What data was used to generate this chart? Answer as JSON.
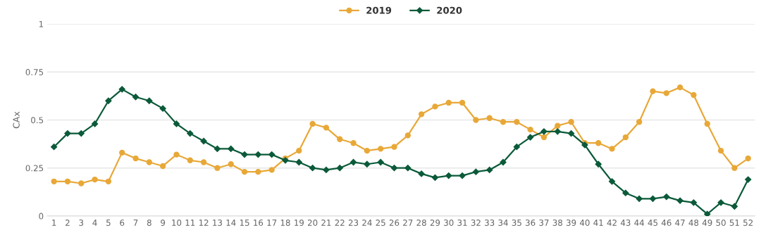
{
  "chart_data": {
    "type": "line",
    "ylabel": "CAx",
    "categories": [
      "1",
      "2",
      "3",
      "4",
      "5",
      "6",
      "7",
      "8",
      "9",
      "10",
      "11",
      "12",
      "13",
      "14",
      "15",
      "16",
      "17",
      "18",
      "19",
      "20",
      "21",
      "22",
      "23",
      "24",
      "25",
      "26",
      "27",
      "28",
      "29",
      "30",
      "31",
      "32",
      "33",
      "34",
      "35",
      "36",
      "37",
      "38",
      "39",
      "40",
      "41",
      "42",
      "43",
      "44",
      "45",
      "46",
      "47",
      "48",
      "49",
      "50",
      "51",
      "52"
    ],
    "series": [
      {
        "name": "2019",
        "color": "#e8a838",
        "marker": "circle",
        "values": [
          0.18,
          0.18,
          0.17,
          0.19,
          0.18,
          0.33,
          0.3,
          0.28,
          0.26,
          0.32,
          0.29,
          0.28,
          0.25,
          0.27,
          0.23,
          0.23,
          0.24,
          0.3,
          0.34,
          0.48,
          0.46,
          0.4,
          0.38,
          0.34,
          0.35,
          0.36,
          0.42,
          0.53,
          0.57,
          0.59,
          0.59,
          0.5,
          0.51,
          0.49,
          0.49,
          0.45,
          0.41,
          0.47,
          0.49,
          0.38,
          0.38,
          0.35,
          0.41,
          0.49,
          0.65,
          0.64,
          0.67,
          0.63,
          0.48,
          0.34,
          0.25,
          0.3
        ]
      },
      {
        "name": "2020",
        "color": "#0b5a3a",
        "marker": "diamond",
        "values": [
          0.36,
          0.43,
          0.43,
          0.48,
          0.6,
          0.66,
          0.62,
          0.6,
          0.56,
          0.48,
          0.43,
          0.39,
          0.35,
          0.35,
          0.32,
          0.32,
          0.32,
          0.29,
          0.28,
          0.25,
          0.24,
          0.25,
          0.28,
          0.27,
          0.28,
          0.25,
          0.25,
          0.22,
          0.2,
          0.21,
          0.21,
          0.23,
          0.24,
          0.28,
          0.36,
          0.41,
          0.44,
          0.44,
          0.43,
          0.37,
          0.27,
          0.18,
          0.12,
          0.09,
          0.09,
          0.1,
          0.08,
          0.07,
          0.01,
          0.07,
          0.05,
          0.19
        ]
      }
    ],
    "ylim": [
      0,
      1
    ],
    "yticks": [
      0,
      0.25,
      0.5,
      0.75,
      1
    ],
    "grid": "y",
    "legend": "top",
    "line_style": "solid"
  }
}
